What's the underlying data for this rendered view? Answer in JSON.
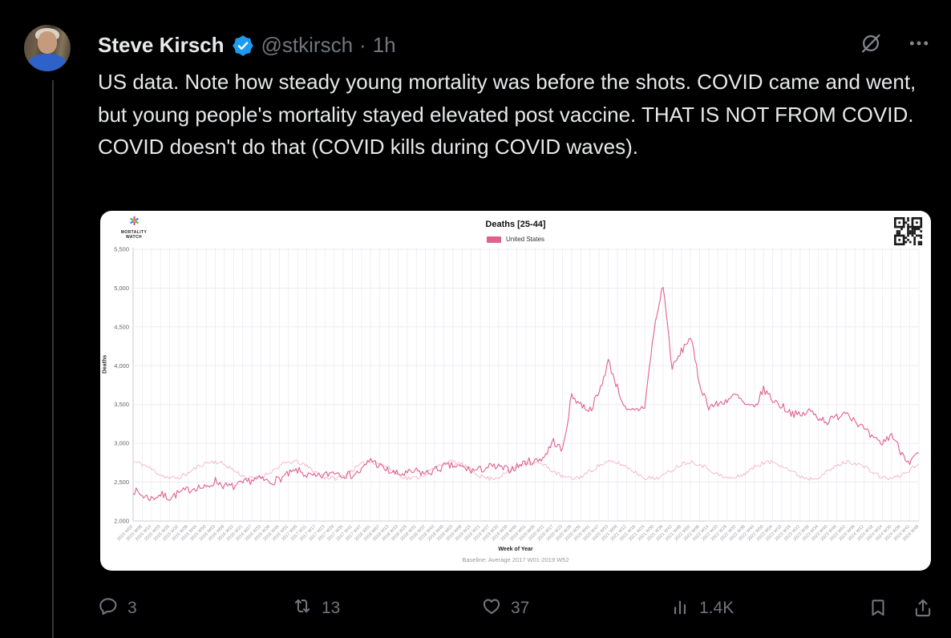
{
  "colors": {
    "accent_blue": "#1d9bf0",
    "muted_gray": "#71767b",
    "text": "#e7e9ea",
    "thread_line": "#333639",
    "series_pink": "#e0618e",
    "baseline_pink": "#f2b3c9"
  },
  "tweet": {
    "author": {
      "name": "Steve Kirsch",
      "handle": "@stkirsch",
      "separator": "·",
      "time": "1h"
    },
    "body": "US data. Note how steady young mortality was before the shots. COVID came and went, but young people's mortality stayed elevated post vaccine. THAT IS NOT FROM COVID. COVID doesn't do that (COVID kills during COVID waves).",
    "actions": {
      "replies": "3",
      "reposts": "13",
      "likes": "37",
      "views": "1.4K"
    }
  },
  "chart_logo": {
    "line1": "MORTALITY",
    "line2": "WATCH"
  },
  "chart_data": {
    "type": "line",
    "title": "Deaths [25-44]",
    "xlabel": "Week of Year",
    "ylabel": "Deaths",
    "footnote": "Baseline: Average 2017 W01-2019 W52",
    "legend": [
      {
        "name": "United States",
        "color": "#e0618e"
      }
    ],
    "legend_position": "top",
    "grid": true,
    "ylim": [
      2000,
      5500
    ],
    "yticks": [
      "2,000",
      "2,500",
      "3,000",
      "3,500",
      "4,000",
      "4,500",
      "5,000",
      "5,500"
    ],
    "categories": [
      "2015 W02",
      "2015 W08",
      "2015 W14",
      "2015 W20",
      "2015 W26",
      "2015 W32",
      "2015 W38",
      "2015 W44",
      "2015 W50",
      "2016 W03",
      "2016 W09",
      "2016 W15",
      "2016 W21",
      "2016 W27",
      "2016 W33",
      "2016 W39",
      "2016 W45",
      "2016 W51",
      "2017 W05",
      "2017 W11",
      "2017 W17",
      "2017 W23",
      "2017 W29",
      "2017 W35",
      "2017 W41",
      "2017 W47",
      "2018 W01",
      "2018 W07",
      "2018 W13",
      "2018 W19",
      "2018 W25",
      "2018 W31",
      "2018 W37",
      "2018 W43",
      "2018 W49",
      "2019 W03",
      "2019 W09",
      "2019 W15",
      "2019 W21",
      "2019 W27",
      "2019 W33",
      "2019 W39",
      "2019 W45",
      "2019 W51",
      "2020 W05",
      "2020 W11",
      "2020 W17",
      "2020 W23",
      "2020 W29",
      "2020 W35",
      "2020 W41",
      "2020 W47",
      "2020 W53",
      "2021 W06",
      "2021 W12",
      "2021 W18",
      "2021 W24",
      "2021 W30",
      "2021 W36",
      "2021 W42",
      "2021 W48",
      "2022 W02",
      "2022 W08",
      "2022 W14",
      "2022 W20",
      "2022 W26",
      "2022 W32",
      "2022 W38",
      "2022 W44",
      "2022 W50",
      "2023 W04",
      "2023 W10",
      "2023 W16",
      "2023 W22",
      "2023 W28",
      "2023 W34",
      "2023 W40",
      "2023 W46",
      "2023 W52",
      "2024 W06",
      "2024 W12",
      "2024 W18",
      "2024 W24",
      "2024 W30",
      "2024 W36",
      "2024 W42",
      "2024 W48"
    ],
    "series": [
      {
        "name": "United States",
        "color": "#e0618e",
        "values": [
          2400,
          2330,
          2290,
          2340,
          2300,
          2360,
          2400,
          2440,
          2420,
          2520,
          2450,
          2440,
          2480,
          2530,
          2540,
          2500,
          2540,
          2600,
          2650,
          2590,
          2560,
          2590,
          2640,
          2600,
          2590,
          2650,
          2800,
          2700,
          2640,
          2600,
          2610,
          2640,
          2610,
          2650,
          2700,
          2710,
          2690,
          2650,
          2660,
          2700,
          2690,
          2660,
          2700,
          2760,
          2770,
          2830,
          3030,
          2900,
          3620,
          3500,
          3430,
          3650,
          4060,
          3720,
          3400,
          3420,
          3480,
          4450,
          5050,
          3960,
          4180,
          4380,
          3760,
          3480,
          3500,
          3560,
          3620,
          3490,
          3450,
          3700,
          3560,
          3480,
          3400,
          3350,
          3420,
          3340,
          3280,
          3340,
          3420,
          3300,
          3180,
          3050,
          3000,
          3120,
          2900,
          2760,
          2870
        ]
      },
      {
        "name": "Baseline",
        "color": "#f2b3c9",
        "values": [
          2765,
          2735,
          2670,
          2595,
          2550,
          2560,
          2615,
          2695,
          2750,
          2765,
          2730,
          2655,
          2580,
          2545,
          2565,
          2630,
          2705,
          2760,
          2760,
          2705,
          2630,
          2565,
          2545,
          2580,
          2655,
          2730,
          2765,
          2745,
          2680,
          2600,
          2550,
          2555,
          2605,
          2685,
          2750,
          2765,
          2730,
          2655,
          2580,
          2545,
          2565,
          2630,
          2705,
          2760,
          2755,
          2715,
          2640,
          2570,
          2545,
          2570,
          2640,
          2715,
          2760,
          2750,
          2700,
          2625,
          2560,
          2545,
          2585,
          2660,
          2735,
          2765,
          2735,
          2670,
          2595,
          2550,
          2560,
          2615,
          2695,
          2750,
          2760,
          2720,
          2645,
          2575,
          2545,
          2570,
          2635,
          2710,
          2760,
          2750,
          2700,
          2625,
          2560,
          2545,
          2585,
          2660,
          2735
        ]
      }
    ]
  }
}
